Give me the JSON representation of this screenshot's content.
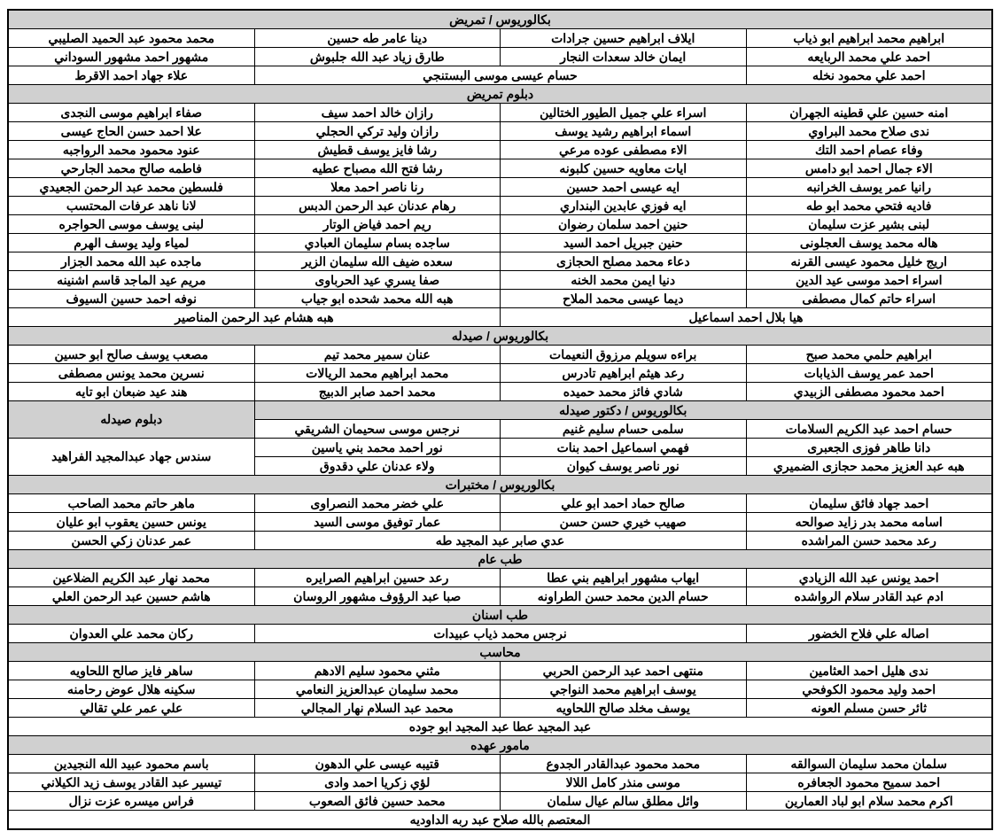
{
  "colors": {
    "header_bg": "#d0d0d0",
    "normal_bg": "#ffffff",
    "border": "#000000",
    "text": "#000000"
  },
  "fontsize": 14,
  "sections": [
    {
      "header": "بكالوريوس / تمريض",
      "rows": [
        [
          "ابراهيم محمد ابراهيم ابو ذياب",
          "ايلاف ابراهيم حسين جرادات",
          "دينا عامر طه حسين",
          "محمد محمود عبد الحميد الصليبي"
        ],
        [
          "احمد علي محمد الربايعه",
          "ايمان خالد سعدات النجار",
          "طارق زياد عبد الله جلبوش",
          "مشهور احمد مشهور السوداني"
        ]
      ],
      "special_row": {
        "cells": [
          {
            "text": "احمد علي محمود نخله",
            "span": 1
          },
          {
            "text": "حسام عيسى موسى البستنجي",
            "span": 2
          },
          {
            "text": "علاء جهاد احمد الاقرط",
            "span": 1
          }
        ]
      }
    },
    {
      "header": "دبلوم تمريض",
      "rows": [
        [
          "امنه حسين علي قطينه الجهران",
          "اسراء علي جميل الطيور الختالين",
          "رازان خالد احمد سيف",
          "صفاء ابراهيم موسى النجدى"
        ],
        [
          "ندى صلاح محمد البراوي",
          "اسماء ابراهيم رشيد يوسف",
          "رازان وليد تركي الحجلي",
          "علا احمد حسن الحاج عيسى"
        ],
        [
          "وفاء عصام احمد التك",
          "الاء مصطفى عوده مرعي",
          "رشا فايز يوسف قطيش",
          "عنود محمود محمد الرواجبه"
        ],
        [
          "الاء جمال احمد ابو دامس",
          "ايات معاويه حسين كلبونه",
          "رشا فتح الله مصباح عطيه",
          "فاطمه صالح محمد الجارحي"
        ],
        [
          "رانيا عمر يوسف الخرانبه",
          "ايه عيسى احمد حسين",
          "رنا ناصر احمد معلا",
          "فلسطين محمد عبد الرحمن الجعيدي"
        ],
        [
          "فاديه فتحي محمد ابو طه",
          "ايه فوزي عابدين البنداري",
          "رهام عدنان عبد الرحمن الدبس",
          "لانا ناهد عرفات المحتسب"
        ],
        [
          "لبنى بشير عزت سليمان",
          "حنين احمد سلمان رضوان",
          "ريم احمد فياض الوتار",
          "لبنى يوسف موسى الحواجره"
        ],
        [
          "هاله محمد يوسف العجلونى",
          "حنين جبريل احمد السيد",
          "ساجده بسام سليمان العبادي",
          "لمياء وليد يوسف الهرم"
        ],
        [
          "اريج خليل محمود عيسى القرنه",
          "دعاء محمد مصلح الحجازى",
          "سعده ضيف الله سليمان الزير",
          "ماجده عبد الله محمد الجزار"
        ],
        [
          "اسراء احمد موسى عيد الدين",
          "دنيا ايمن محمد الخنه",
          "صفا يسري عيد الحرباوى",
          "مريم عيد الماجد قاسم اشنينه"
        ],
        [
          "اسراء حاتم كمال مصطفى",
          "ديما عيسى محمد الملاح",
          "هبه الله محمد شحده ابو جياب",
          "نوفه احمد حسين السيوف"
        ]
      ],
      "special_row": {
        "cells": [
          {
            "text": "هيا بلال احمد اسماعيل",
            "span": 2
          },
          {
            "text": "هبه هشام عبد الرحمن المناصير",
            "span": 2
          }
        ]
      }
    },
    {
      "header": "بكالوريوس / صيدله",
      "rows": [
        [
          "ابراهيم حلمي محمد صبح",
          "براءه سويلم مرزوق النعيمات",
          "عنان سمير محمد تيم",
          "مصعب يوسف صالح ابو حسين"
        ],
        [
          "احمد عمر يوسف الذيابات",
          "رعد هيثم ابراهيم تادرس",
          "محمد ابراهيم محمد الريالات",
          "نسرين محمد يونس مصطفى"
        ],
        [
          "احمد محمود مصطفى الزبيدي",
          "شادي فائز محمد حميده",
          "محمد احمد صابر الدبيج",
          "هند عيد ضبعان ابو تايه"
        ]
      ]
    }
  ],
  "pharm_doctor_header": "بكالوريوس / دكتور صيدله",
  "pharm_diploma_header": "دبلوم صيدله",
  "pharm_doctor_rows_left": [
    [
      "حسام احمد عبد الكريم السلامات",
      "سلمى حسام سليم غنيم",
      "نرجس موسى سحيمان الشريقي"
    ],
    [
      "دانا طاهر فوزى الجعبرى",
      "فهمي اسماعيل احمد بنات",
      "نور احمد محمد بني ياسين"
    ],
    [
      "هبه عبد العزيز محمد حجازى الضميري",
      "نور ناصر يوسف كيوان",
      "ولاء عدنان علي دقدوق"
    ]
  ],
  "pharm_diploma_name": "سندس جهاد عبدالمجيد الفراهيد",
  "labs": {
    "header": "بكالوريوس / مختبرات",
    "rows": [
      [
        "احمد جهاد فائق سليمان",
        "صالح حماد احمد ابو علي",
        "علي خضر محمد النصراوى",
        "ماهر حاتم محمد الصاحب"
      ],
      [
        "اسامه محمد بدر زايد صوالحه",
        "صهيب خيري حسن حسن",
        "عمار توفيق موسى السيد",
        "يونس حسين يعقوب ابو عليان"
      ]
    ],
    "special_row": {
      "cells": [
        {
          "text": "رعد محمد حسن المراشده",
          "span": 1
        },
        {
          "text": "عدي صابر عبد المجيد طه",
          "span": 2
        },
        {
          "text": "عمر عدنان زكي الحسن",
          "span": 1
        }
      ]
    }
  },
  "gen_med": {
    "header": "طب عام",
    "rows": [
      [
        "احمد يونس عبد الله الزيادي",
        "ايهاب مشهور ابراهيم بني عطا",
        "رعد حسين ابراهيم الصرايره",
        "محمد نهار عبد الكريم الضلاعين"
      ],
      [
        "ادم عبد القادر سلام الرواشده",
        "حسام الدين محمد حسن الطراونه",
        "صبا عبد الرؤوف مشهور الروسان",
        "هاشم حسين عبد الرحمن العلي"
      ]
    ]
  },
  "dental": {
    "header": "طب اسنان",
    "special_row": {
      "cells": [
        {
          "text": "اصاله علي فلاح الخضور",
          "span": 1
        },
        {
          "text": "نرجس محمد ذياب عبيدات",
          "span": 2
        },
        {
          "text": "ركان محمد علي العدوان",
          "span": 1
        }
      ]
    }
  },
  "accountant": {
    "header": "محاسب",
    "rows": [
      [
        "ندى هليل احمد العثامين",
        "منتهى احمد عبد الرحمن الحربي",
        "مثني محمود سليم الادهم",
        "ساهر فايز صالح اللحاويه"
      ],
      [
        "احمد وليد محمود الكوفحي",
        "يوسف ابراهيم محمد النواجي",
        "محمد سليمان عبدالعزيز النعامي",
        "سكينه هلال عوض رحامنه"
      ],
      [
        "ثائر حسن مسلم العونه",
        "يوسف مخلد صالح اللحاويه",
        "محمد عبد السلام نهار المجالي",
        "علي عمر علي تقالي"
      ]
    ],
    "footer": "عبد المجيد عطا عبد المجيد ابو جوده"
  },
  "officer": {
    "header": "مامور  عهده",
    "rows": [
      [
        "سلمان محمد سليمان السوالقه",
        "محمد محمود عبدالقادر الجدوع",
        "قتيبه عيسى علي الدهون",
        "باسم محمود عبيد الله النجيدين"
      ],
      [
        "احمد سميح محمود الجعافره",
        "موسى منذر كامل اللالا",
        "لؤي زكريا احمد وادى",
        "تيسير عبد القادر يوسف زيد الكيلاني"
      ],
      [
        "اكرم محمد سلام ابو لباد العمارين",
        "وائل مطلق سالم عيال سلمان",
        "محمد حسين فائق الصعوب",
        "فراس ميسره عزت نزال"
      ]
    ],
    "footer": "المعتصم بالله صلاح عبد ربه الداوديه"
  }
}
